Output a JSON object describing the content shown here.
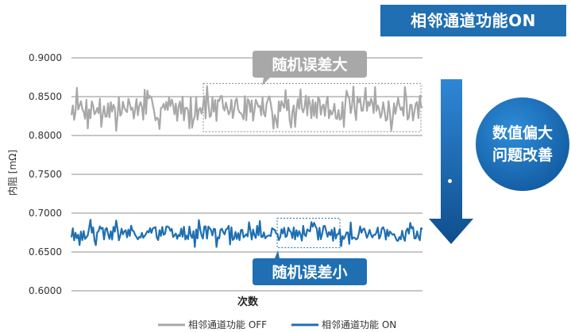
{
  "badge_text": "相邻通道功能ON",
  "improvement_line1": "数值偏大",
  "improvement_line2": "问题改善",
  "chart_data": {
    "type": "line",
    "title": "",
    "xlabel": "次数",
    "ylabel": "内阻 [mΩ]",
    "ylim": [
      0.6,
      0.9
    ],
    "y_ticks": [
      "0.9000",
      "0.8500",
      "0.8000",
      "0.7500",
      "0.7000",
      "0.6500",
      "0.6000"
    ],
    "grid": true,
    "legend_position": "bottom",
    "annotations": [
      {
        "text": "随机误差大",
        "series": "相邻通道功能 OFF"
      },
      {
        "text": "随机误差小",
        "series": "相邻通道功能 ON"
      }
    ],
    "series": [
      {
        "name": "相邻通道功能 OFF",
        "color": "#a8a8a8",
        "mean": 0.835,
        "min": 0.806,
        "max": 0.866,
        "points": 260,
        "seed": 7
      },
      {
        "name": "相邻通道功能 ON",
        "color": "#1f6fb2",
        "mean": 0.674,
        "min": 0.656,
        "max": 0.692,
        "points": 260,
        "seed": 19
      }
    ]
  }
}
